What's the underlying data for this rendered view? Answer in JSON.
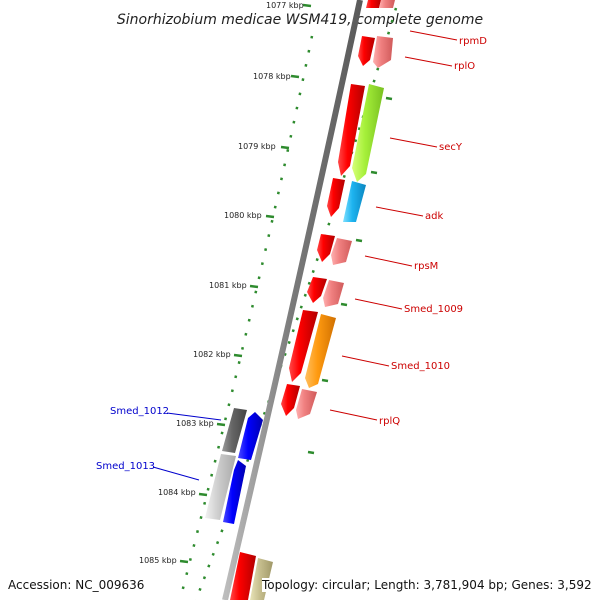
{
  "title": "Sinorhizobium medicae WSM419, complete genome",
  "footer": {
    "accession": "Accession: NC_009636",
    "topology": "Topology: circular; Length: 3,781,904 bp; Genes: 3,592"
  },
  "colors": {
    "backbone": "#8a8a8a",
    "tick": "#2e8b2e",
    "forward_label": "#cc0000",
    "reverse_label": "#0000cc"
  },
  "kbp_ticks": [
    {
      "kbp": 1077,
      "label": "1077 kbp"
    },
    {
      "kbp": 1078,
      "label": "1078 kbp"
    },
    {
      "kbp": 1079,
      "label": "1079 kbp"
    },
    {
      "kbp": 1080,
      "label": "1080 kbp"
    },
    {
      "kbp": 1081,
      "label": "1081 kbp"
    },
    {
      "kbp": 1082,
      "label": "1082 kbp"
    },
    {
      "kbp": 1083,
      "label": "1083 kbp"
    },
    {
      "kbp": 1084,
      "label": "1084 kbp"
    },
    {
      "kbp": 1085,
      "label": "1085 kbp"
    }
  ],
  "genes": [
    {
      "name": "rpmD",
      "strand": "forward"
    },
    {
      "name": "rplO",
      "strand": "forward"
    },
    {
      "name": "secY",
      "strand": "forward"
    },
    {
      "name": "adk",
      "strand": "forward"
    },
    {
      "name": "rpsM",
      "strand": "forward"
    },
    {
      "name": "Smed_1009",
      "strand": "forward"
    },
    {
      "name": "Smed_1010",
      "strand": "forward"
    },
    {
      "name": "rplQ",
      "strand": "forward"
    },
    {
      "name": "Smed_1012",
      "strand": "reverse"
    },
    {
      "name": "Smed_1013",
      "strand": "reverse"
    }
  ]
}
